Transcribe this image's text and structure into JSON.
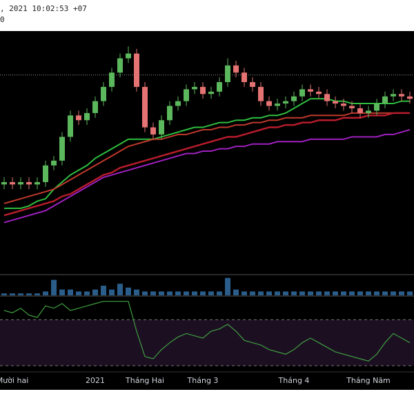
{
  "header": {
    "line1": ", 2021 10:02:53 +07",
    "line2": "0"
  },
  "chart_data": {
    "type": "candlestick",
    "categories": [
      null,
      "Mười hai",
      null,
      null,
      null,
      null,
      null,
      null,
      null,
      null,
      null,
      "2021",
      null,
      null,
      null,
      null,
      null,
      "Tháng Hai",
      null,
      null,
      null,
      null,
      null,
      null,
      "Tháng 3",
      null,
      null,
      null,
      null,
      null,
      null,
      null,
      null,
      null,
      null,
      "Tháng 4",
      null,
      null,
      null,
      null,
      null,
      null,
      null,
      null,
      "Tháng Năm",
      null,
      null,
      null,
      null,
      null
    ],
    "open": [
      37,
      38,
      37,
      38,
      37,
      38,
      45,
      47,
      57,
      66,
      64,
      67,
      72,
      78,
      84,
      90,
      92,
      78,
      61,
      58,
      64,
      70,
      72,
      77,
      78,
      75,
      76,
      80,
      87,
      84,
      80,
      78,
      72,
      70,
      71,
      72,
      74,
      77,
      76,
      75,
      72,
      71,
      70,
      69,
      67,
      68,
      71,
      74,
      75,
      74
    ],
    "high": [
      40,
      40,
      40,
      40,
      40,
      47,
      49,
      59,
      68,
      68,
      69,
      74,
      80,
      86,
      92,
      95,
      94,
      80,
      63,
      66,
      72,
      74,
      79,
      80,
      80,
      78,
      82,
      90,
      89,
      86,
      82,
      80,
      74,
      73,
      74,
      76,
      79,
      79,
      78,
      77,
      74,
      73,
      72,
      71,
      70,
      73,
      76,
      77,
      77,
      76
    ],
    "low": [
      35,
      35,
      35,
      35,
      35,
      36,
      43,
      45,
      55,
      62,
      62,
      65,
      70,
      76,
      82,
      88,
      76,
      59,
      56,
      56,
      62,
      68,
      70,
      75,
      73,
      73,
      74,
      78,
      82,
      78,
      76,
      70,
      68,
      68,
      69,
      70,
      72,
      74,
      73,
      70,
      69,
      68,
      67,
      65,
      65,
      66,
      69,
      72,
      72,
      71
    ],
    "close": [
      38,
      37,
      38,
      37,
      38,
      45,
      47,
      57,
      66,
      64,
      67,
      72,
      78,
      84,
      90,
      92,
      78,
      61,
      58,
      64,
      70,
      72,
      77,
      78,
      75,
      76,
      80,
      87,
      84,
      80,
      78,
      72,
      70,
      71,
      72,
      74,
      77,
      76,
      75,
      72,
      71,
      70,
      69,
      67,
      68,
      71,
      74,
      75,
      74,
      73
    ],
    "up_color": "#5cb85c",
    "down_color": "#e57373",
    "ylim": [
      0,
      100
    ],
    "price_line": 83,
    "lines": [
      {
        "color": "#2fbf3f",
        "values": [
          27,
          27,
          27,
          28,
          30,
          31,
          35,
          38,
          41,
          43,
          45,
          48,
          50,
          52,
          54,
          56,
          56,
          56,
          56,
          57,
          58,
          59,
          60,
          61,
          61,
          62,
          63,
          63,
          64,
          64,
          65,
          65,
          66,
          66,
          67,
          69,
          71,
          73,
          73,
          73,
          72,
          72,
          71,
          71,
          71,
          71,
          71,
          71,
          72,
          72
        ]
      },
      {
        "color": "#c0392b",
        "values": [
          29,
          30,
          31,
          32,
          33,
          34,
          35,
          37,
          39,
          41,
          43,
          45,
          47,
          49,
          51,
          53,
          54,
          55,
          56,
          56,
          57,
          58,
          58,
          59,
          60,
          60,
          61,
          61,
          62,
          62,
          63,
          63,
          64,
          64,
          65,
          65,
          65,
          66,
          66,
          66,
          66,
          66,
          67,
          67,
          67,
          67,
          67,
          67,
          67,
          67
        ]
      },
      {
        "color": "#b71c2c",
        "values": [
          24,
          25,
          26,
          27,
          28,
          29,
          30,
          32,
          33,
          35,
          37,
          39,
          41,
          42,
          44,
          45,
          46,
          47,
          48,
          49,
          50,
          51,
          52,
          53,
          54,
          55,
          56,
          57,
          57,
          58,
          59,
          60,
          61,
          61,
          62,
          62,
          63,
          63,
          64,
          64,
          64,
          65,
          65,
          65,
          66,
          66,
          66,
          67,
          67,
          67
        ]
      },
      {
        "color": "#a020c0",
        "values": [
          21,
          22,
          23,
          24,
          25,
          26,
          28,
          30,
          32,
          34,
          36,
          38,
          40,
          41,
          42,
          43,
          44,
          45,
          46,
          47,
          48,
          49,
          50,
          50,
          51,
          51,
          52,
          52,
          53,
          53,
          54,
          54,
          54,
          55,
          55,
          55,
          55,
          56,
          56,
          56,
          56,
          56,
          57,
          57,
          57,
          57,
          58,
          58,
          59,
          60
        ]
      }
    ],
    "volume": {
      "color": "#2a5d8a",
      "ylim": [
        0,
        10
      ],
      "values": [
        1,
        1,
        1,
        1,
        1,
        2,
        8,
        3,
        3,
        2,
        2,
        3,
        5,
        3,
        6,
        4,
        3,
        2,
        2,
        2,
        2,
        2,
        2,
        2,
        2,
        2,
        2,
        9,
        3,
        2,
        2,
        2,
        2,
        2,
        2,
        2,
        2,
        2,
        2,
        2,
        2,
        2,
        2,
        2,
        2,
        2,
        2,
        2,
        2,
        2
      ]
    },
    "rsi": {
      "color": "#3fa03f",
      "ylim": [
        27,
        90
      ],
      "levels": [
        70,
        30
      ],
      "band_color": "#1c0f22",
      "values": [
        78,
        76,
        80,
        74,
        72,
        82,
        80,
        84,
        78,
        80,
        82,
        84,
        86,
        86,
        86,
        86,
        60,
        38,
        36,
        44,
        50,
        55,
        58,
        56,
        54,
        60,
        62,
        66,
        60,
        52,
        50,
        48,
        44,
        42,
        40,
        44,
        50,
        54,
        50,
        46,
        42,
        40,
        38,
        36,
        34,
        40,
        50,
        58,
        54,
        50
      ]
    }
  }
}
